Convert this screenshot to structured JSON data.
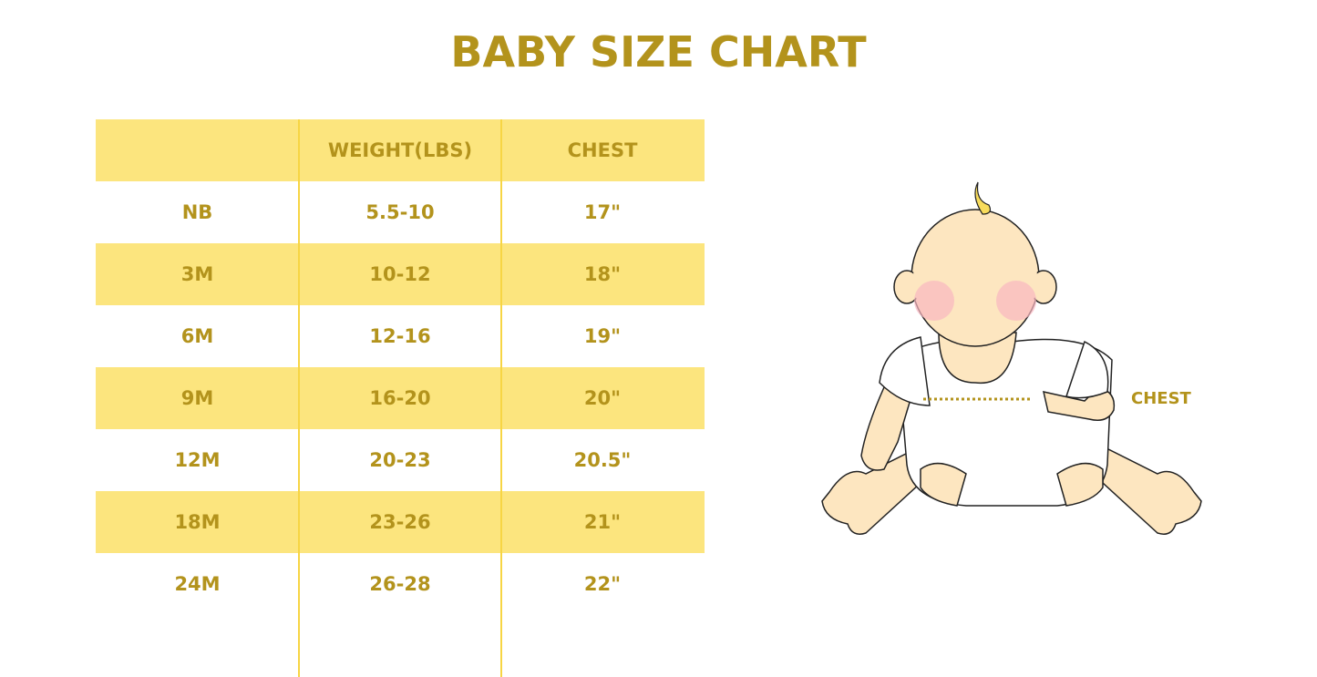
{
  "title": "BABY SIZE CHART",
  "table": {
    "headers": [
      "",
      "WEIGHT(LBS)",
      "CHEST"
    ],
    "rows": [
      [
        "NB",
        "5.5-10",
        "17\""
      ],
      [
        "3M",
        "10-12",
        "18\""
      ],
      [
        "6M",
        "12-16",
        "19\""
      ],
      [
        "9M",
        "16-20",
        "20\""
      ],
      [
        "12M",
        "20-23",
        "20.5\""
      ],
      [
        "18M",
        "23-26",
        "21\""
      ],
      [
        "24M",
        "26-28",
        "22\""
      ]
    ]
  },
  "illustration": {
    "chest_label": "CHEST"
  },
  "colors": {
    "text": "#B3931C",
    "band": "#FCE57E",
    "divider": "#F7D544"
  }
}
